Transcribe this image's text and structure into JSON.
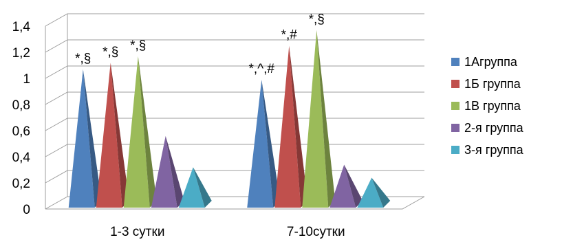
{
  "chart_data": {
    "type": "bar",
    "style": "3d-pyramid",
    "categories": [
      "1-3 сутки",
      "7-10сутки"
    ],
    "series": [
      {
        "name": "1Агруппа",
        "color": "#4f81bd",
        "values": [
          1.08,
          1.0
        ]
      },
      {
        "name": "1Б группа",
        "color": "#c0504d",
        "values": [
          1.13,
          1.26
        ]
      },
      {
        "name": "1В группа",
        "color": "#9bbb59",
        "values": [
          1.18,
          1.38
        ]
      },
      {
        "name": "2-я группа",
        "color": "#8064a2",
        "values": [
          0.57,
          0.35
        ]
      },
      {
        "name": "3-я группа",
        "color": "#4bacc6",
        "values": [
          0.33,
          0.25
        ]
      }
    ],
    "annotations": [
      {
        "category": 0,
        "series": 0,
        "text": "*,§"
      },
      {
        "category": 0,
        "series": 1,
        "text": "*,§"
      },
      {
        "category": 0,
        "series": 2,
        "text": "*,§"
      },
      {
        "category": 1,
        "series": 0,
        "text": "*,^,#"
      },
      {
        "category": 1,
        "series": 1,
        "text": "*,#"
      },
      {
        "category": 1,
        "series": 2,
        "text": "*,§"
      }
    ],
    "ylim": [
      0,
      1.4
    ],
    "yticks": [
      "0",
      "0,2",
      "0,4",
      "0,6",
      "0,8",
      "1",
      "1,2",
      "1,4"
    ],
    "grid": true,
    "legend_position": "right",
    "title": "",
    "xlabel": "",
    "ylabel": ""
  }
}
